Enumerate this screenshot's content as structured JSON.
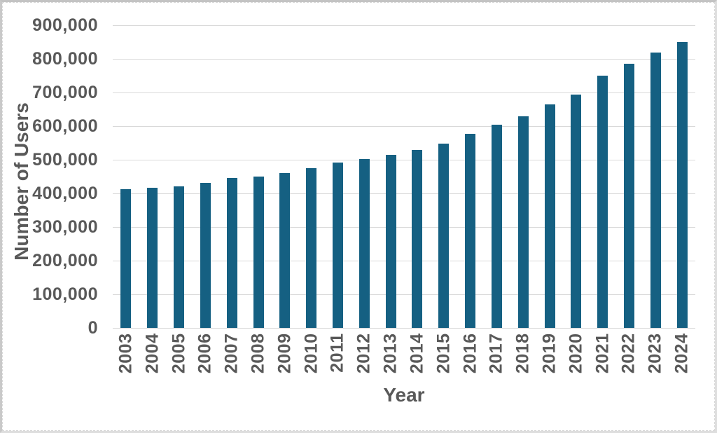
{
  "chart_data": {
    "type": "bar",
    "title": "",
    "xlabel": "Year",
    "ylabel": "Number of Users",
    "categories": [
      "2003",
      "2004",
      "2005",
      "2006",
      "2007",
      "2008",
      "2009",
      "2010",
      "2011",
      "2012",
      "2013",
      "2014",
      "2015",
      "2016",
      "2017",
      "2018",
      "2019",
      "2020",
      "2021",
      "2022",
      "2023",
      "2024"
    ],
    "values": [
      412000,
      416000,
      420000,
      431000,
      446000,
      450000,
      461000,
      474000,
      492000,
      503000,
      514000,
      530000,
      548000,
      577000,
      605000,
      629000,
      664000,
      693000,
      750000,
      786000,
      818000,
      851000
    ],
    "ylim": [
      0,
      900000
    ],
    "ytick_step": 100000,
    "ytick_labels": [
      "0",
      "100,000",
      "200,000",
      "300,000",
      "400,000",
      "500,000",
      "600,000",
      "700,000",
      "800,000",
      "900,000"
    ],
    "grid": "horizontal",
    "legend": "none"
  },
  "colors": {
    "bar": "#156082",
    "axis_text": "#595959",
    "gridline": "#d9d9d9",
    "frame_border": "#c9c9c9",
    "background": "#ffffff"
  }
}
